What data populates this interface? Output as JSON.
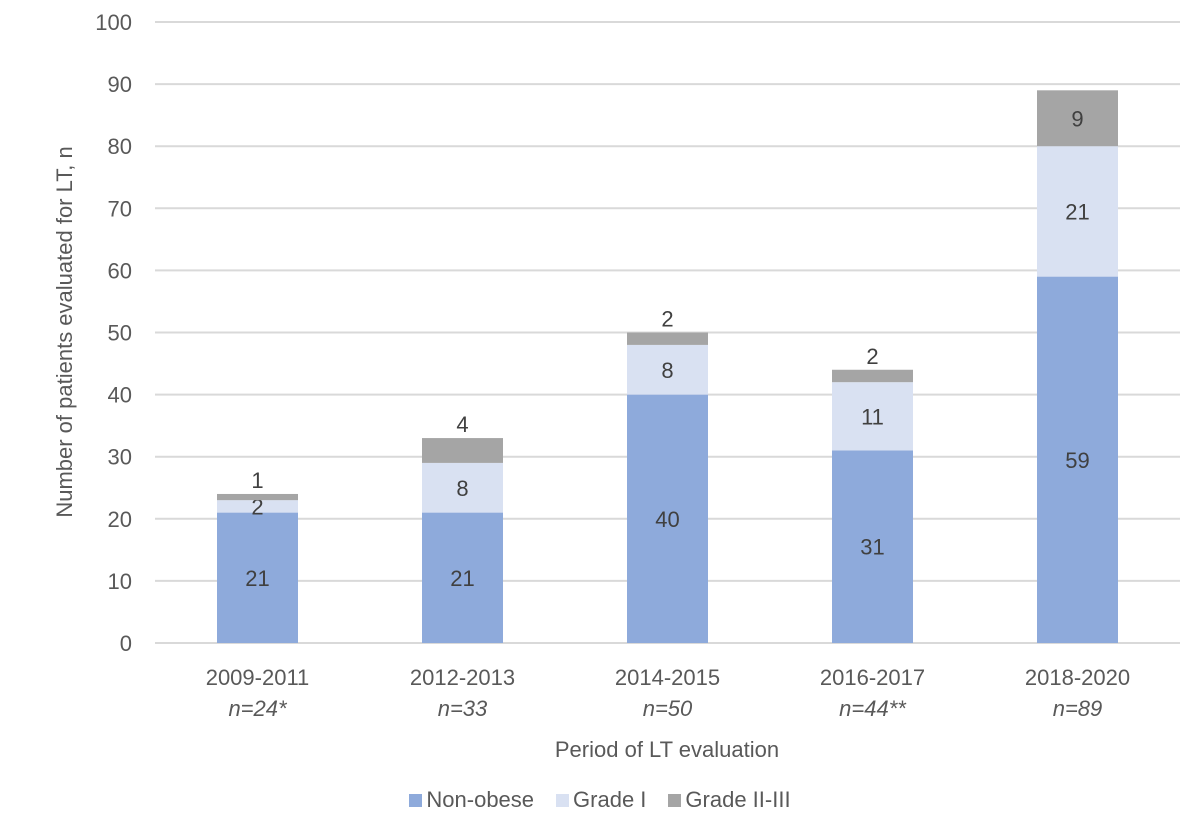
{
  "chart_data": {
    "type": "bar",
    "stacked": true,
    "title": "",
    "xlabel": "Period of LT evaluation",
    "ylabel": "Number of patients evaluated for LT, n",
    "ylim": [
      0,
      100
    ],
    "yticks": [
      0,
      10,
      20,
      30,
      40,
      50,
      60,
      70,
      80,
      90,
      100
    ],
    "grid": true,
    "legend_position": "bottom",
    "categories": [
      "2009-2011",
      "2012-2013",
      "2014-2015",
      "2016-2017",
      "2018-2020"
    ],
    "category_sublabels": [
      "n=24*",
      "n=33",
      "n=50",
      "n=44**",
      "n=89"
    ],
    "series": [
      {
        "name": "Non-obese",
        "color": "#8eaadb",
        "values": [
          21,
          21,
          40,
          31,
          59
        ]
      },
      {
        "name": "Grade I",
        "color": "#d9e1f2",
        "values": [
          2,
          8,
          8,
          11,
          21
        ]
      },
      {
        "name": "Grade II-III",
        "color": "#a5a5a5",
        "values": [
          1,
          4,
          2,
          2,
          9
        ]
      }
    ]
  }
}
